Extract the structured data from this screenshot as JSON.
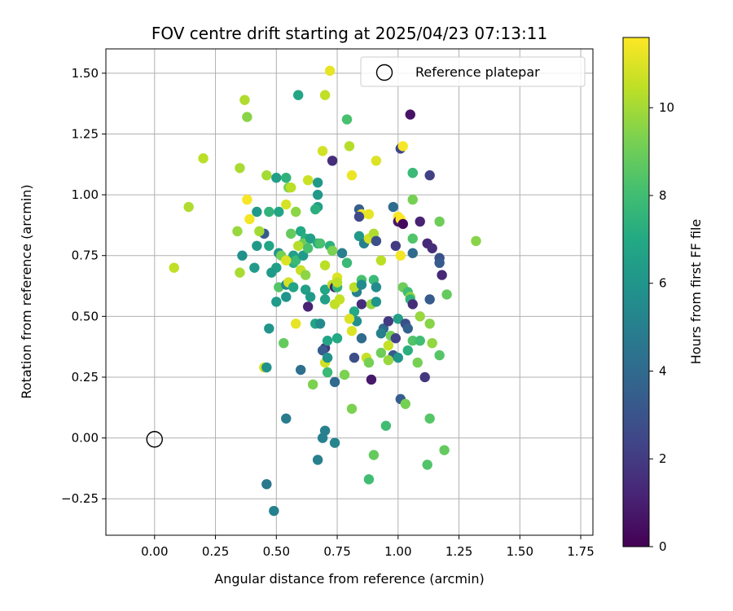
{
  "chart_data": {
    "type": "scatter",
    "title": "FOV centre drift starting at 2025/04/23 07:13:11",
    "xlabel": "Angular distance from reference (arcmin)",
    "ylabel": "Rotation from reference (arcmin)",
    "xlim": [
      -0.2,
      1.8
    ],
    "ylim": [
      -0.4,
      1.6
    ],
    "xticks": [
      "0.00",
      "0.25",
      "0.50",
      "0.75",
      "1.00",
      "1.25",
      "1.50",
      "1.75"
    ],
    "yticks": [
      "−0.25",
      "0.00",
      "0.25",
      "0.50",
      "0.75",
      "1.00",
      "1.25",
      "1.50"
    ],
    "grid": true,
    "legend": {
      "position": "top-right",
      "label": "Reference platepar"
    },
    "reference_point": {
      "x": 0.0,
      "y": 0.0
    },
    "colorbar": {
      "label": "Hours from first FF file",
      "min": 0,
      "max": 11.6,
      "ticks": [
        "0",
        "2",
        "4",
        "6",
        "8",
        "10"
      ],
      "colormap": "viridis"
    },
    "points": [
      [
        0.72,
        1.51,
        11.2
      ],
      [
        1.05,
        1.33,
        0.6
      ],
      [
        0.37,
        1.39,
        10.2
      ],
      [
        0.38,
        1.32,
        9.5
      ],
      [
        0.59,
        1.41,
        6.8
      ],
      [
        0.7,
        1.41,
        10.5
      ],
      [
        0.79,
        1.31,
        8.2
      ],
      [
        0.8,
        1.2,
        10.3
      ],
      [
        0.69,
        1.18,
        10.8
      ],
      [
        0.2,
        1.15,
        10.4
      ],
      [
        0.35,
        1.11,
        10.1
      ],
      [
        0.73,
        1.14,
        1.5
      ],
      [
        0.91,
        1.14,
        11.0
      ],
      [
        1.01,
        1.19,
        2.4
      ],
      [
        1.02,
        1.2,
        11.5
      ],
      [
        1.06,
        1.09,
        6.5
      ],
      [
        1.06,
        1.09,
        7.8
      ],
      [
        1.13,
        1.08,
        2.2
      ],
      [
        0.81,
        1.08,
        11.3
      ],
      [
        0.46,
        1.08,
        10.0
      ],
      [
        0.5,
        1.07,
        6.5
      ],
      [
        0.54,
        1.07,
        7.4
      ],
      [
        0.63,
        1.06,
        10.7
      ],
      [
        0.67,
        1.05,
        6.2
      ],
      [
        0.55,
        1.03,
        9.3
      ],
      [
        0.56,
        1.03,
        10.4
      ],
      [
        0.38,
        0.98,
        11.5
      ],
      [
        0.67,
        1.0,
        6.2
      ],
      [
        0.14,
        0.95,
        10.2
      ],
      [
        0.67,
        0.95,
        6.5
      ],
      [
        0.54,
        0.96,
        10.9
      ],
      [
        0.66,
        0.94,
        7.3
      ],
      [
        0.42,
        0.93,
        6.2
      ],
      [
        0.47,
        0.93,
        7.5
      ],
      [
        0.51,
        0.93,
        6.8
      ],
      [
        0.58,
        0.93,
        9.6
      ],
      [
        0.84,
        0.94,
        3.5
      ],
      [
        0.85,
        0.92,
        11.4
      ],
      [
        0.98,
        0.95,
        4.1
      ],
      [
        0.84,
        0.91,
        2.5
      ],
      [
        0.88,
        0.92,
        11.2
      ],
      [
        1.0,
        0.91,
        11.5
      ],
      [
        1.06,
        0.98,
        9.2
      ],
      [
        1.0,
        0.89,
        0.8
      ],
      [
        1.01,
        0.9,
        11.6
      ],
      [
        1.02,
        0.88,
        0.3
      ],
      [
        1.09,
        0.89,
        1.1
      ],
      [
        1.17,
        0.89,
        9.0
      ],
      [
        0.39,
        0.9,
        11.4
      ],
      [
        0.34,
        0.85,
        9.8
      ],
      [
        0.45,
        0.84,
        3.3
      ],
      [
        0.43,
        0.85,
        10.0
      ],
      [
        0.56,
        0.84,
        8.8
      ],
      [
        0.6,
        0.85,
        7.0
      ],
      [
        0.62,
        0.82,
        7.3
      ],
      [
        0.61,
        0.8,
        9.0
      ],
      [
        0.64,
        0.82,
        6.5
      ],
      [
        0.67,
        0.8,
        7.3
      ],
      [
        0.68,
        0.8,
        8.2
      ],
      [
        0.84,
        0.83,
        6.2
      ],
      [
        0.86,
        0.8,
        5.0
      ],
      [
        0.88,
        0.82,
        10.8
      ],
      [
        0.9,
        0.84,
        10.2
      ],
      [
        0.91,
        0.81,
        2.8
      ],
      [
        1.06,
        0.82,
        8.4
      ],
      [
        1.12,
        0.8,
        1.3
      ],
      [
        1.14,
        0.78,
        1.5
      ],
      [
        1.17,
        0.74,
        2.8
      ],
      [
        1.17,
        0.72,
        3.3
      ],
      [
        1.32,
        0.81,
        9.5
      ],
      [
        0.08,
        0.7,
        10.5
      ],
      [
        0.36,
        0.75,
        5.8
      ],
      [
        0.42,
        0.79,
        6.2
      ],
      [
        0.47,
        0.79,
        6.8
      ],
      [
        0.51,
        0.76,
        6.0
      ],
      [
        0.52,
        0.75,
        9.2
      ],
      [
        0.57,
        0.72,
        7.3
      ],
      [
        0.57,
        0.75,
        6.5
      ],
      [
        0.58,
        0.73,
        7.8
      ],
      [
        0.61,
        0.75,
        6.3
      ],
      [
        0.59,
        0.79,
        10.3
      ],
      [
        0.63,
        0.78,
        8.2
      ],
      [
        0.72,
        0.79,
        7.3
      ],
      [
        0.73,
        0.77,
        9.3
      ],
      [
        0.77,
        0.76,
        5.0
      ],
      [
        0.79,
        0.72,
        7.8
      ],
      [
        0.7,
        0.71,
        10.4
      ],
      [
        0.6,
        0.69,
        10.6
      ],
      [
        0.62,
        0.67,
        9.6
      ],
      [
        0.54,
        0.73,
        11.0
      ],
      [
        0.5,
        0.7,
        6.5
      ],
      [
        0.48,
        0.68,
        6.3
      ],
      [
        0.41,
        0.7,
        6.3
      ],
      [
        0.35,
        0.68,
        10.1
      ],
      [
        0.93,
        0.73,
        10.4
      ],
      [
        0.99,
        0.79,
        2.0
      ],
      [
        1.01,
        0.75,
        11.4
      ],
      [
        1.06,
        0.76,
        4.0
      ],
      [
        1.18,
        0.67,
        1.3
      ],
      [
        0.51,
        0.62,
        8.5
      ],
      [
        0.54,
        0.63,
        5.5
      ],
      [
        0.55,
        0.64,
        10.8
      ],
      [
        0.57,
        0.62,
        6.8
      ],
      [
        0.62,
        0.61,
        6.5
      ],
      [
        0.64,
        0.58,
        6.3
      ],
      [
        0.63,
        0.54,
        1.1
      ],
      [
        0.7,
        0.61,
        6.8
      ],
      [
        0.73,
        0.63,
        10.5
      ],
      [
        0.74,
        0.62,
        1.0
      ],
      [
        0.75,
        0.62,
        7.5
      ],
      [
        0.75,
        0.66,
        11.0
      ],
      [
        0.75,
        0.64,
        10.4
      ],
      [
        0.83,
        0.6,
        5.0
      ],
      [
        0.82,
        0.62,
        10.4
      ],
      [
        0.85,
        0.65,
        8.2
      ],
      [
        0.85,
        0.63,
        5.5
      ],
      [
        0.9,
        0.65,
        7.8
      ],
      [
        0.91,
        0.62,
        5.5
      ],
      [
        1.02,
        0.62,
        9.0
      ],
      [
        1.04,
        0.6,
        8.0
      ],
      [
        1.05,
        0.58,
        9.7
      ],
      [
        1.05,
        0.57,
        7.5
      ],
      [
        1.06,
        0.55,
        1.5
      ],
      [
        1.13,
        0.57,
        3.3
      ],
      [
        1.2,
        0.59,
        8.8
      ],
      [
        0.5,
        0.56,
        6.3
      ],
      [
        0.54,
        0.58,
        6.0
      ],
      [
        0.7,
        0.57,
        6.5
      ],
      [
        0.74,
        0.55,
        10.5
      ],
      [
        0.76,
        0.57,
        10.6
      ],
      [
        0.82,
        0.52,
        7.0
      ],
      [
        0.83,
        0.48,
        5.7
      ],
      [
        0.85,
        0.55,
        1.5
      ],
      [
        0.89,
        0.55,
        9.8
      ],
      [
        0.91,
        0.56,
        6.0
      ],
      [
        1.0,
        0.49,
        6.5
      ],
      [
        1.03,
        0.47,
        2.8
      ],
      [
        1.09,
        0.5,
        9.8
      ],
      [
        1.13,
        0.47,
        9.5
      ],
      [
        0.58,
        0.47,
        11.2
      ],
      [
        0.66,
        0.47,
        6.8
      ],
      [
        0.68,
        0.47,
        5.5
      ],
      [
        0.8,
        0.49,
        11.0
      ],
      [
        0.81,
        0.44,
        11.0
      ],
      [
        0.85,
        0.41,
        4.0
      ],
      [
        0.94,
        0.45,
        4.0
      ],
      [
        0.96,
        0.48,
        2.0
      ],
      [
        1.04,
        0.45,
        3.6
      ],
      [
        1.06,
        0.4,
        8.4
      ],
      [
        1.09,
        0.4,
        8.0
      ],
      [
        1.14,
        0.39,
        9.7
      ],
      [
        0.47,
        0.45,
        6.0
      ],
      [
        0.53,
        0.39,
        8.8
      ],
      [
        0.7,
        0.37,
        1.8
      ],
      [
        0.69,
        0.36,
        3.4
      ],
      [
        0.71,
        0.4,
        6.8
      ],
      [
        0.75,
        0.41,
        7.0
      ],
      [
        0.93,
        0.43,
        5.0
      ],
      [
        0.97,
        0.42,
        9.2
      ],
      [
        0.96,
        0.38,
        10.6
      ],
      [
        0.99,
        0.41,
        2.3
      ],
      [
        0.87,
        0.33,
        10.6
      ],
      [
        0.88,
        0.31,
        9.2
      ],
      [
        0.82,
        0.33,
        2.8
      ],
      [
        0.7,
        0.31,
        10.8
      ],
      [
        0.71,
        0.33,
        5.8
      ],
      [
        0.93,
        0.35,
        9.0
      ],
      [
        0.98,
        0.34,
        3.3
      ],
      [
        1.0,
        0.33,
        6.0
      ],
      [
        0.96,
        0.32,
        9.8
      ],
      [
        1.04,
        0.36,
        7.3
      ],
      [
        1.08,
        0.31,
        9.2
      ],
      [
        1.17,
        0.34,
        8.5
      ],
      [
        0.45,
        0.29,
        10.9
      ],
      [
        0.46,
        0.29,
        5.8
      ],
      [
        0.6,
        0.28,
        4.2
      ],
      [
        0.71,
        0.27,
        7.8
      ],
      [
        0.78,
        0.26,
        9.3
      ],
      [
        0.74,
        0.23,
        4.0
      ],
      [
        0.65,
        0.22,
        9.3
      ],
      [
        0.89,
        0.24,
        0.8
      ],
      [
        1.11,
        0.25,
        1.8
      ],
      [
        1.01,
        0.16,
        3.4
      ],
      [
        1.03,
        0.14,
        9.2
      ],
      [
        0.81,
        0.12,
        9.3
      ],
      [
        1.13,
        0.08,
        8.5
      ],
      [
        0.95,
        0.05,
        8.0
      ],
      [
        0.54,
        0.08,
        4.8
      ],
      [
        0.7,
        0.03,
        5.0
      ],
      [
        0.69,
        0.0,
        5.0
      ],
      [
        0.74,
        -0.02,
        5.2
      ],
      [
        0.67,
        -0.09,
        5.0
      ],
      [
        0.9,
        -0.07,
        8.8
      ],
      [
        1.12,
        -0.11,
        8.4
      ],
      [
        1.19,
        -0.05,
        8.8
      ],
      [
        0.88,
        -0.17,
        8.0
      ],
      [
        0.46,
        -0.19,
        4.6
      ],
      [
        0.49,
        -0.3,
        5.0
      ]
    ]
  }
}
